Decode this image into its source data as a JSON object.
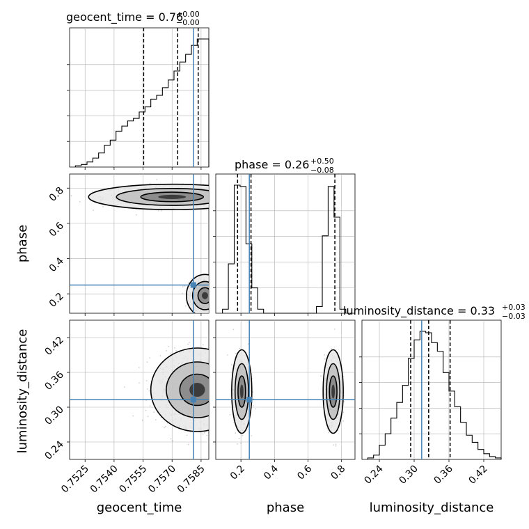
{
  "figure": {
    "type": "corner-plot"
  },
  "style": {
    "truth_color": "#4682b4",
    "contour_color": "#000000",
    "grid_color": "#b0b0b0",
    "quantile_color": "#000000"
  },
  "chart_data": [
    {
      "type": "histogram",
      "parameter": "geocent_time",
      "title_text": "geocent_time = 0.76",
      "title_sup": "+0.00",
      "title_sub": "−0.00",
      "xlim": [
        0.7517,
        0.7589
      ],
      "x_ticks": [
        0.7525,
        0.754,
        0.7555,
        0.757,
        0.7585
      ],
      "bin_edges": [
        0.752,
        0.7523,
        0.7526,
        0.7529,
        0.7532,
        0.7535,
        0.7538,
        0.7541,
        0.7544,
        0.7547,
        0.755,
        0.7553,
        0.7556,
        0.7559,
        0.7562,
        0.7565,
        0.7568,
        0.7571,
        0.7574,
        0.7577,
        0.758,
        0.7583,
        0.7586,
        0.7589
      ],
      "counts": [
        1,
        2,
        4,
        7,
        11,
        17,
        21,
        28,
        32,
        36,
        38,
        43,
        47,
        53,
        56,
        62,
        68,
        75,
        82,
        88,
        95,
        100,
        100
      ],
      "quantiles": [
        0.75553,
        0.75729,
        0.75835
      ],
      "truth": 0.7581
    },
    {
      "type": "histogram",
      "parameter": "phase",
      "title_text": "phase = 0.26",
      "title_sup": "+0.50",
      "title_sub": "−0.08",
      "xlim": [
        0.05,
        0.88
      ],
      "x_ticks": [
        0.2,
        0.4,
        0.6,
        0.8
      ],
      "bin_edges": [
        0.09,
        0.125,
        0.16,
        0.195,
        0.23,
        0.265,
        0.3,
        0.335,
        0.37,
        0.65,
        0.685,
        0.72,
        0.755,
        0.79,
        0.825
      ],
      "counts": [
        3,
        37,
        96,
        95,
        52,
        19,
        3,
        0,
        0,
        5,
        58,
        95,
        72,
        3
      ],
      "quantiles": [
        0.18,
        0.26,
        0.76
      ],
      "truth": 0.25
    },
    {
      "type": "histogram",
      "parameter": "luminosity_distance",
      "title_text": "luminosity_distance = 0.33",
      "title_sup": "+0.03",
      "title_sub": "−0.03",
      "xlim": [
        0.21,
        0.45
      ],
      "x_ticks": [
        0.24,
        0.3,
        0.36,
        0.42
      ],
      "bin_edges": [
        0.22,
        0.23,
        0.24,
        0.25,
        0.26,
        0.27,
        0.28,
        0.29,
        0.3,
        0.31,
        0.32,
        0.33,
        0.34,
        0.35,
        0.36,
        0.37,
        0.38,
        0.39,
        0.4,
        0.41,
        0.42,
        0.43,
        0.44,
        0.45
      ],
      "counts": [
        1,
        3,
        10,
        18,
        29,
        40,
        52,
        71,
        84,
        90,
        89,
        82,
        76,
        61,
        48,
        37,
        26,
        17,
        12,
        7,
        4,
        2,
        1
      ],
      "quantiles": [
        0.294,
        0.325,
        0.362
      ],
      "truth": 0.313
    },
    {
      "type": "contour",
      "x_parameter": "geocent_time",
      "y_parameter": "phase",
      "xlim": [
        0.7517,
        0.7589
      ],
      "ylim": [
        0.09,
        0.88
      ],
      "y_ticks": [
        0.2,
        0.4,
        0.6,
        0.8
      ],
      "y_label": "phase",
      "truth": [
        0.7581,
        0.25
      ],
      "modes": [
        {
          "center": [
            0.757,
            0.75
          ],
          "sigma": [
            0.0018,
            0.03
          ],
          "weight": 0.5
        },
        {
          "center": [
            0.7587,
            0.19
          ],
          "sigma": [
            0.0004,
            0.05
          ],
          "weight": 0.5
        }
      ]
    },
    {
      "type": "contour",
      "x_parameter": "geocent_time",
      "y_parameter": "luminosity_distance",
      "xlim": [
        0.7517,
        0.7589
      ],
      "ylim": [
        0.21,
        0.45
      ],
      "y_ticks": [
        0.24,
        0.3,
        0.36,
        0.42
      ],
      "y_label": "luminosity_distance",
      "x_label": "geocent_time",
      "truth": [
        0.7581,
        0.313
      ],
      "modes": [
        {
          "center": [
            0.7583,
            0.33
          ],
          "sigma": [
            0.001,
            0.03
          ],
          "weight": 1.0
        }
      ]
    },
    {
      "type": "contour",
      "x_parameter": "phase",
      "y_parameter": "luminosity_distance",
      "xlim": [
        0.05,
        0.88
      ],
      "ylim": [
        0.21,
        0.45
      ],
      "x_label": "phase",
      "truth": [
        0.25,
        0.313
      ],
      "modes": [
        {
          "center": [
            0.205,
            0.327
          ],
          "sigma": [
            0.025,
            0.03
          ],
          "weight": 0.5
        },
        {
          "center": [
            0.75,
            0.327
          ],
          "sigma": [
            0.025,
            0.03
          ],
          "weight": 0.5
        }
      ]
    },
    {
      "type": "axis-label",
      "x_label": "luminosity_distance"
    }
  ]
}
